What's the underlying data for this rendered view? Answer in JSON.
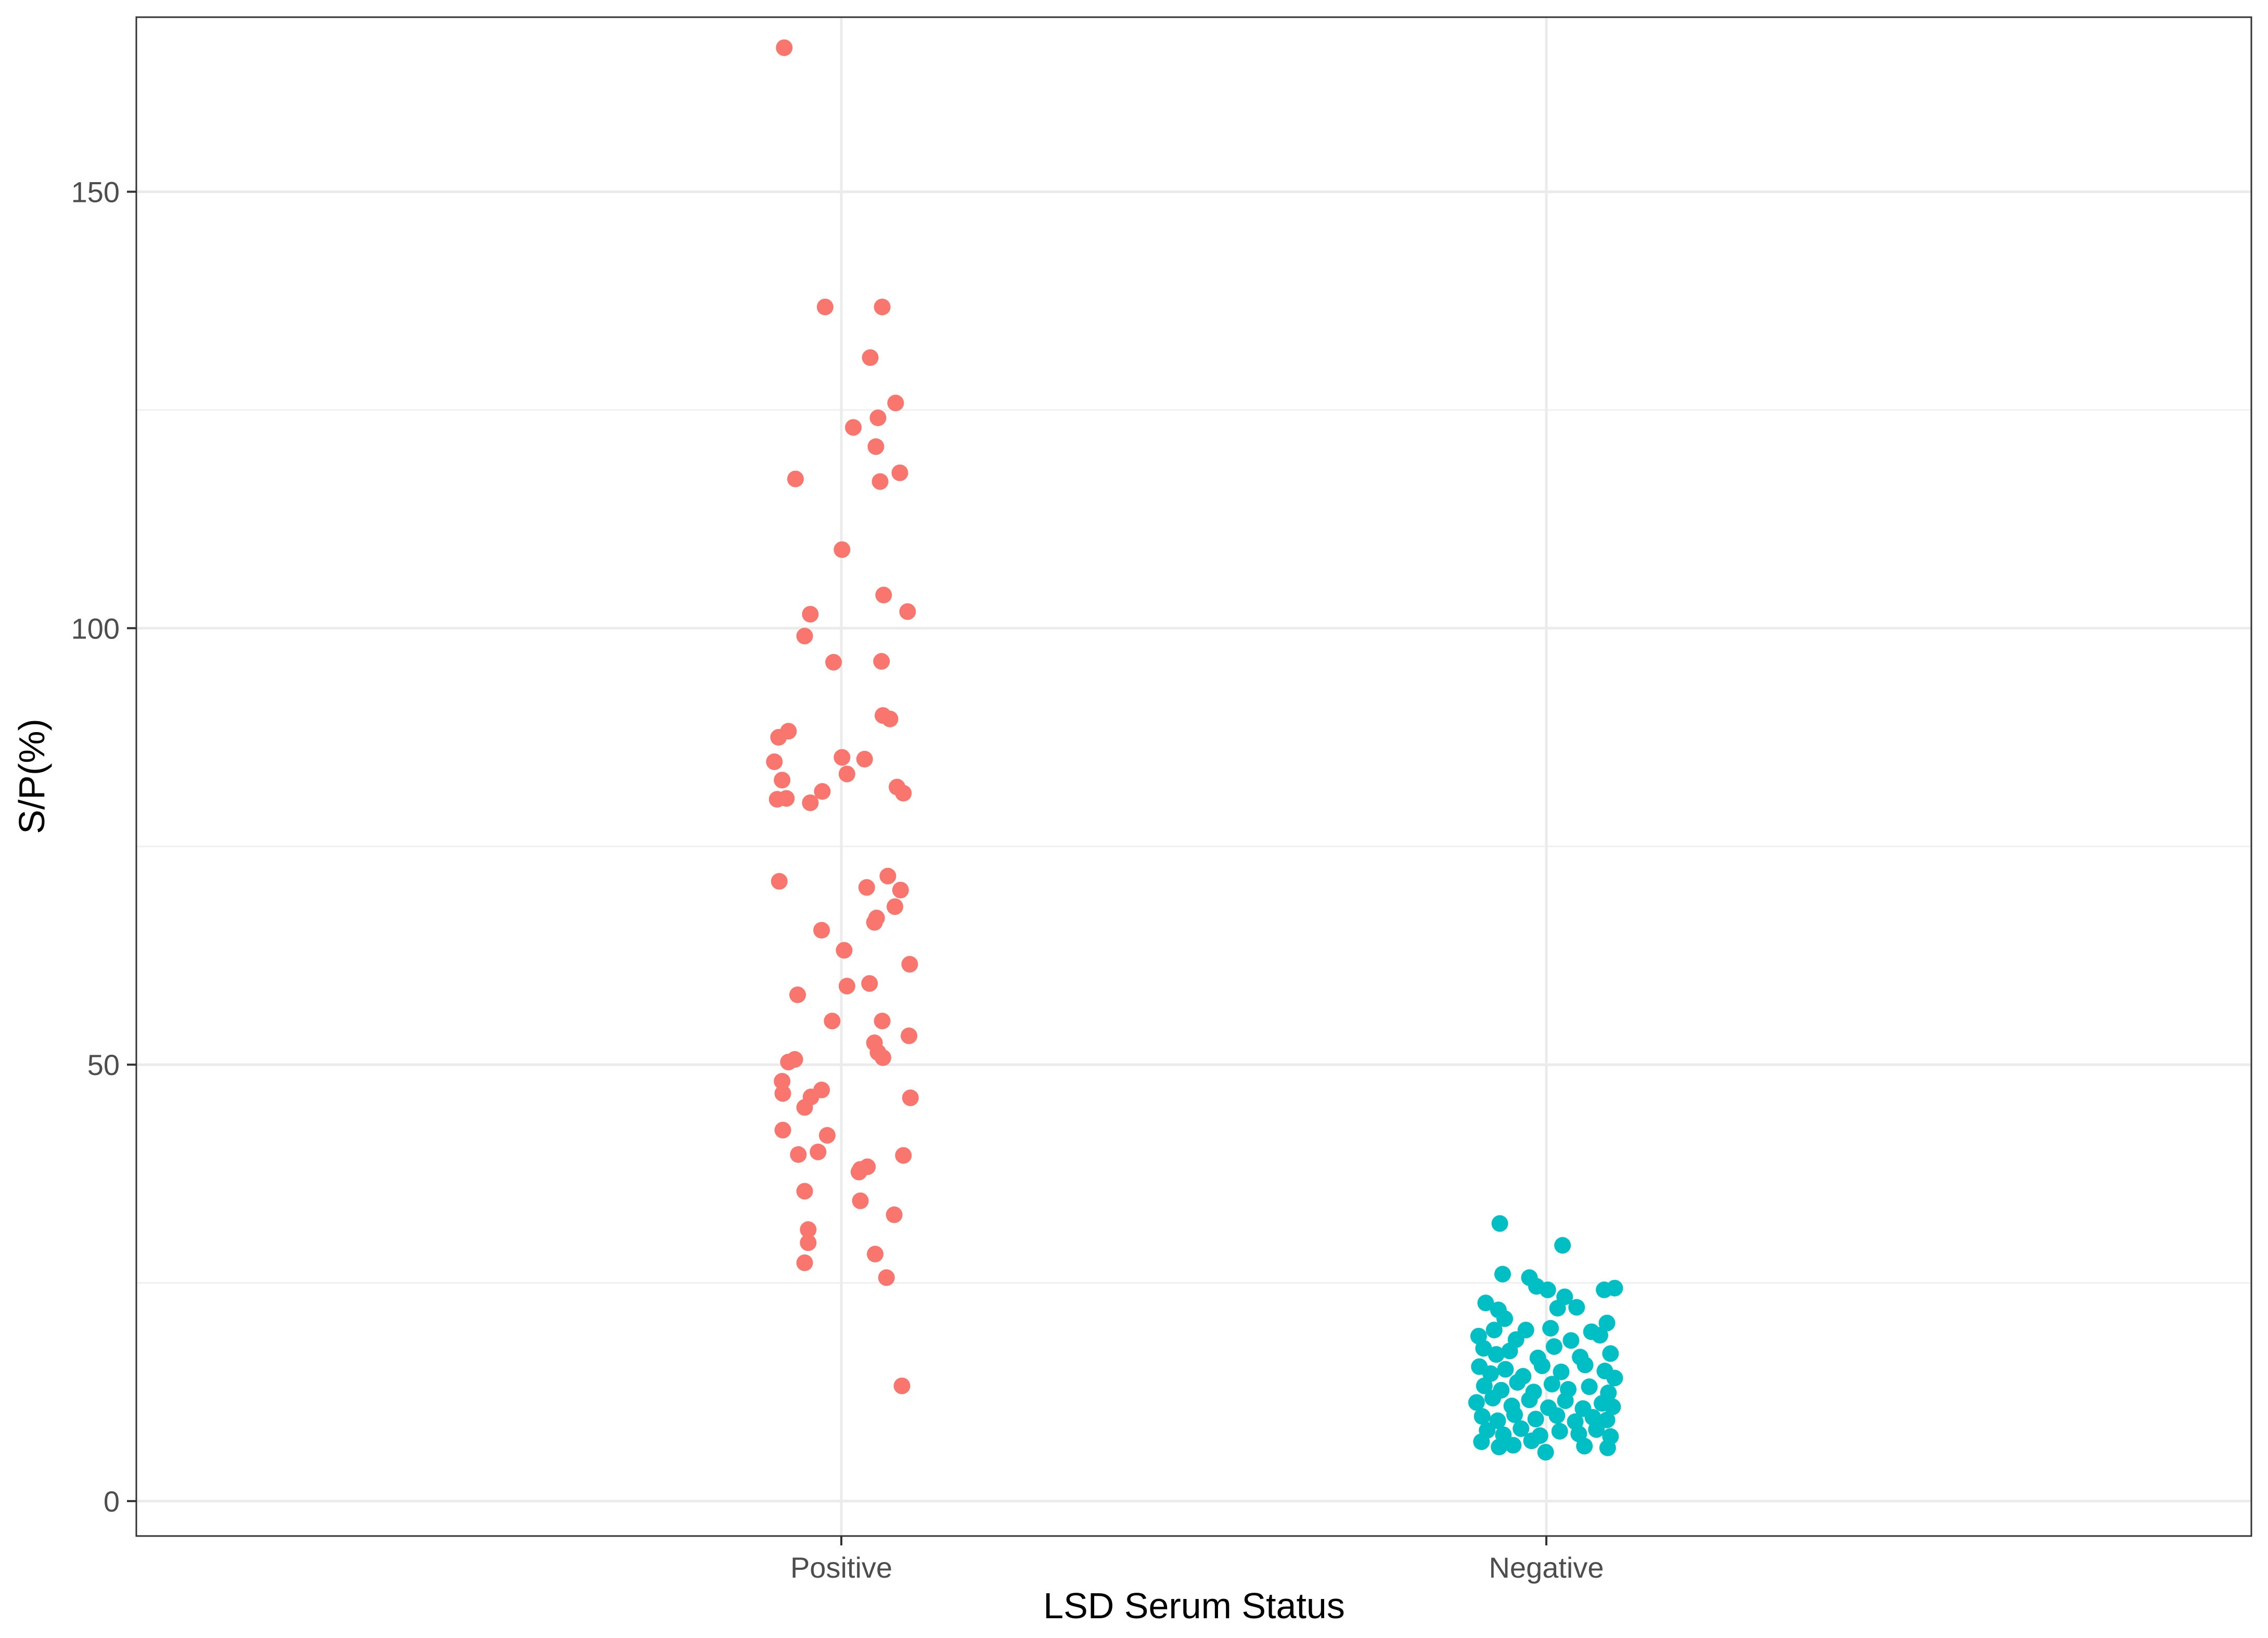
{
  "chart_data": {
    "type": "scatter",
    "xlabel": "LSD Serum Status",
    "ylabel": "S/P(%)",
    "categories": [
      "Positive",
      "Negative"
    ],
    "ylim": [
      -4,
      170
    ],
    "y_ticks": [
      0,
      50,
      100,
      150
    ],
    "y_tick_labels": [
      "0",
      "50",
      "100",
      "150"
    ],
    "grid": "major and minor gridlines on, light grey",
    "legend": "none",
    "colors": {
      "Positive": "#F8766D",
      "Negative": "#00BFC4"
    },
    "series": [
      {
        "category": "Positive",
        "points": [
          [
            -0.081,
            166.5
          ],
          [
            -0.023,
            136.8
          ],
          [
            0.058,
            136.8
          ],
          [
            0.041,
            131.0
          ],
          [
            0.077,
            125.8
          ],
          [
            0.017,
            123.0
          ],
          [
            0.052,
            124.1
          ],
          [
            0.049,
            120.8
          ],
          [
            -0.065,
            117.1
          ],
          [
            0.055,
            116.8
          ],
          [
            0.083,
            117.8
          ],
          [
            0.001,
            109.0
          ],
          [
            0.06,
            103.8
          ],
          [
            -0.044,
            101.6
          ],
          [
            0.094,
            101.9
          ],
          [
            -0.052,
            99.1
          ],
          [
            -0.011,
            96.1
          ],
          [
            0.057,
            96.2
          ],
          [
            -0.075,
            88.2
          ],
          [
            -0.089,
            87.5
          ],
          [
            0.059,
            90.0
          ],
          [
            0.069,
            89.6
          ],
          [
            -0.095,
            84.7
          ],
          [
            0.001,
            85.2
          ],
          [
            0.033,
            85.0
          ],
          [
            -0.084,
            82.6
          ],
          [
            0.008,
            83.3
          ],
          [
            -0.091,
            80.4
          ],
          [
            -0.078,
            80.5
          ],
          [
            -0.044,
            80.0
          ],
          [
            -0.027,
            81.3
          ],
          [
            0.079,
            81.8
          ],
          [
            0.088,
            81.1
          ],
          [
            -0.088,
            71.0
          ],
          [
            0.036,
            70.3
          ],
          [
            0.066,
            71.6
          ],
          [
            0.084,
            70.0
          ],
          [
            0.076,
            68.1
          ],
          [
            0.05,
            66.8
          ],
          [
            0.047,
            66.3
          ],
          [
            -0.028,
            65.4
          ],
          [
            0.004,
            63.1
          ],
          [
            0.097,
            61.5
          ],
          [
            0.008,
            59.0
          ],
          [
            0.04,
            59.3
          ],
          [
            -0.062,
            58.0
          ],
          [
            -0.013,
            55.0
          ],
          [
            0.058,
            55.0
          ],
          [
            0.047,
            52.5
          ],
          [
            0.052,
            51.4
          ],
          [
            0.059,
            50.8
          ],
          [
            0.096,
            53.3
          ],
          [
            -0.075,
            50.3
          ],
          [
            -0.066,
            50.6
          ],
          [
            -0.084,
            48.1
          ],
          [
            -0.083,
            46.7
          ],
          [
            -0.043,
            46.3
          ],
          [
            -0.028,
            47.1
          ],
          [
            -0.052,
            45.1
          ],
          [
            0.098,
            46.2
          ],
          [
            -0.083,
            42.5
          ],
          [
            -0.02,
            41.9
          ],
          [
            -0.061,
            39.7
          ],
          [
            -0.033,
            40.0
          ],
          [
            0.088,
            39.6
          ],
          [
            0.025,
            37.7
          ],
          [
            0.027,
            38.0
          ],
          [
            0.037,
            38.3
          ],
          [
            -0.052,
            35.5
          ],
          [
            0.027,
            34.4
          ],
          [
            0.075,
            32.8
          ],
          [
            -0.047,
            31.1
          ],
          [
            -0.047,
            29.6
          ],
          [
            -0.052,
            27.3
          ],
          [
            0.048,
            28.3
          ],
          [
            0.064,
            25.6
          ],
          [
            0.086,
            13.2
          ]
        ]
      },
      {
        "category": "Negative",
        "points": [
          [
            -0.066,
            31.8
          ],
          [
            0.023,
            29.3
          ],
          [
            -0.062,
            26.0
          ],
          [
            -0.024,
            25.6
          ],
          [
            -0.014,
            24.6
          ],
          [
            0.002,
            24.2
          ],
          [
            0.026,
            23.4
          ],
          [
            0.082,
            24.2
          ],
          [
            0.097,
            24.4
          ],
          [
            -0.086,
            22.7
          ],
          [
            -0.068,
            21.9
          ],
          [
            -0.059,
            20.9
          ],
          [
            0.016,
            22.1
          ],
          [
            0.043,
            22.2
          ],
          [
            0.086,
            20.4
          ],
          [
            -0.096,
            18.9
          ],
          [
            -0.074,
            19.6
          ],
          [
            -0.043,
            18.5
          ],
          [
            -0.029,
            19.6
          ],
          [
            0.006,
            19.8
          ],
          [
            0.035,
            18.4
          ],
          [
            0.064,
            19.4
          ],
          [
            0.076,
            19.0
          ],
          [
            -0.089,
            17.5
          ],
          [
            -0.071,
            16.8
          ],
          [
            -0.052,
            17.2
          ],
          [
            -0.012,
            16.4
          ],
          [
            0.011,
            17.7
          ],
          [
            0.048,
            16.5
          ],
          [
            0.091,
            16.9
          ],
          [
            -0.095,
            15.4
          ],
          [
            -0.079,
            14.6
          ],
          [
            -0.058,
            15.1
          ],
          [
            -0.033,
            14.3
          ],
          [
            -0.006,
            15.5
          ],
          [
            0.021,
            14.8
          ],
          [
            0.055,
            15.6
          ],
          [
            0.083,
            14.9
          ],
          [
            0.097,
            14.1
          ],
          [
            -0.088,
            13.2
          ],
          [
            -0.064,
            12.7
          ],
          [
            -0.041,
            13.6
          ],
          [
            -0.018,
            12.5
          ],
          [
            0.008,
            13.4
          ],
          [
            0.031,
            12.8
          ],
          [
            0.061,
            13.1
          ],
          [
            0.088,
            12.4
          ],
          [
            -0.099,
            11.3
          ],
          [
            -0.076,
            11.8
          ],
          [
            -0.049,
            10.9
          ],
          [
            -0.024,
            11.6
          ],
          [
            0.003,
            10.7
          ],
          [
            0.027,
            11.5
          ],
          [
            0.052,
            10.6
          ],
          [
            0.079,
            11.2
          ],
          [
            0.094,
            10.8
          ],
          [
            -0.091,
            9.7
          ],
          [
            -0.069,
            9.2
          ],
          [
            -0.045,
            9.9
          ],
          [
            -0.015,
            9.4
          ],
          [
            0.015,
            9.8
          ],
          [
            0.041,
            9.1
          ],
          [
            0.066,
            9.6
          ],
          [
            0.086,
            9.3
          ],
          [
            -0.084,
            8.1
          ],
          [
            -0.061,
            7.6
          ],
          [
            -0.036,
            8.3
          ],
          [
            -0.009,
            7.5
          ],
          [
            0.019,
            8.0
          ],
          [
            0.046,
            7.7
          ],
          [
            0.071,
            8.2
          ],
          [
            0.091,
            7.4
          ],
          [
            -0.092,
            6.8
          ],
          [
            -0.067,
            6.2
          ],
          [
            -0.047,
            6.4
          ],
          [
            -0.021,
            6.9
          ],
          [
            0.054,
            6.3
          ],
          [
            0.087,
            6.1
          ],
          [
            -0.001,
            5.6
          ]
        ]
      }
    ]
  }
}
